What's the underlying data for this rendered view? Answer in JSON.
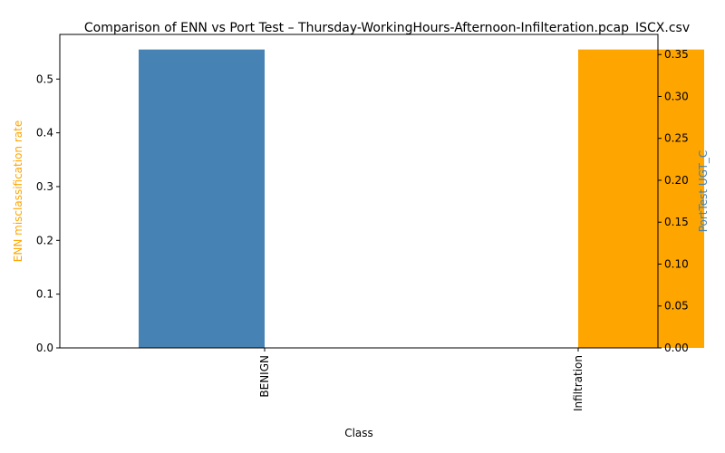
{
  "chart_data": {
    "type": "bar",
    "title": "Comparison of ENN vs Port Test – Thursday-WorkingHours-Afternoon-Infilteration.pcap_ISCX.csv",
    "xlabel": "Class",
    "categories": [
      "BENIGN",
      "Infiltration"
    ],
    "grid": false,
    "legend": "none",
    "series": [
      {
        "axis": "left",
        "ylabel": "ENN misclassification rate",
        "color": "#ffa500",
        "values": [
          0.0,
          0.555
        ],
        "ylim": [
          0,
          0.583
        ],
        "ticks": [
          "0.0",
          "0.1",
          "0.2",
          "0.3",
          "0.4",
          "0.5"
        ]
      },
      {
        "axis": "right",
        "ylabel": "PortTest UGT_C",
        "color": "#4682b4",
        "values": [
          0.356,
          0.0
        ],
        "ylim": [
          0,
          0.374
        ],
        "ticks": [
          "0.00",
          "0.05",
          "0.10",
          "0.15",
          "0.20",
          "0.25",
          "0.30",
          "0.35"
        ]
      }
    ]
  }
}
